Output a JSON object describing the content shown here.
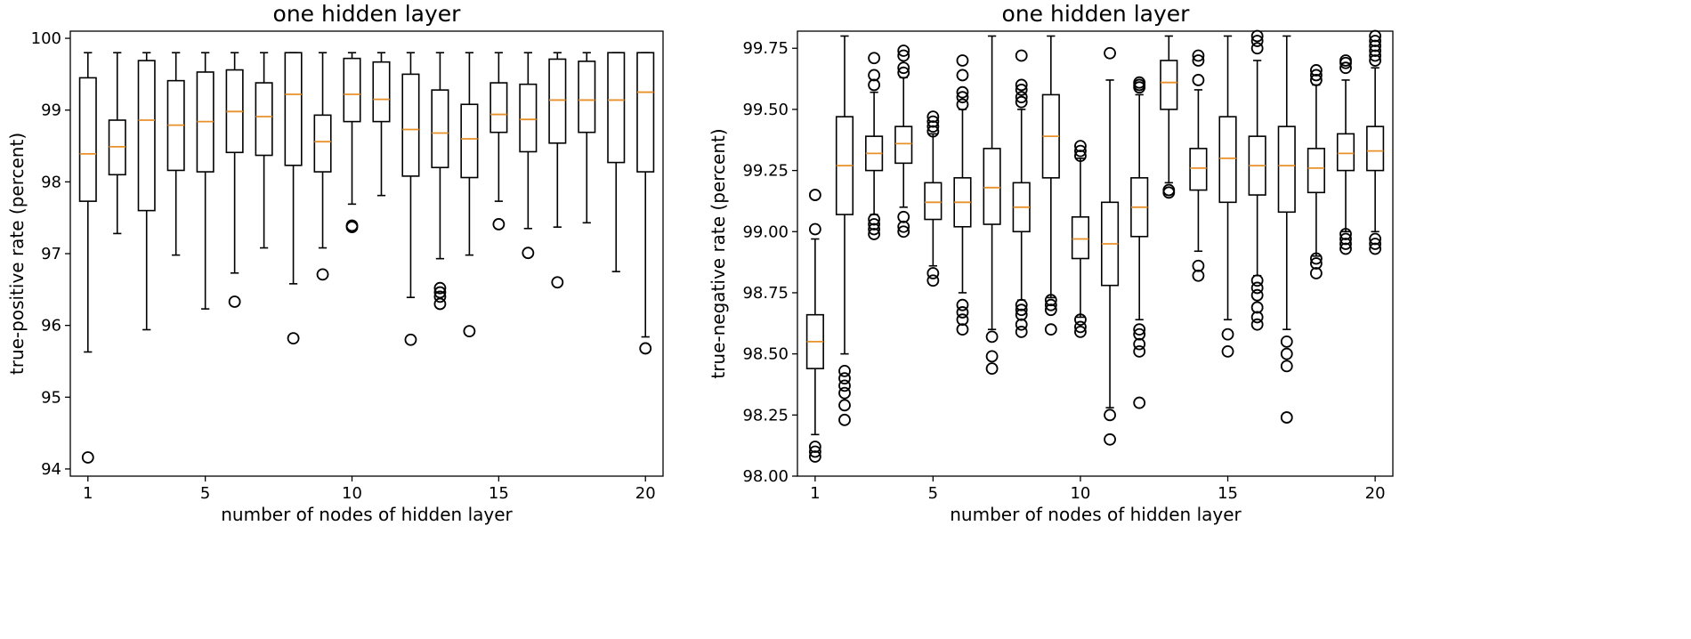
{
  "chart_data": [
    {
      "type": "boxplot",
      "title": "one hidden layer",
      "xlabel": "number of nodes of hidden layer",
      "ylabel": "true-positive rate (percent)",
      "xlim": [
        0.4,
        20.6
      ],
      "ylim": [
        93.9,
        100.1
      ],
      "xticks": [
        1,
        5,
        10,
        15,
        20
      ],
      "yticks": [
        94,
        95,
        96,
        97,
        98,
        99,
        100
      ],
      "ytick_labels": [
        "94",
        "95",
        "96",
        "97",
        "98",
        "99",
        "100"
      ],
      "boxes": [
        {
          "x": 1,
          "whislo": 95.63,
          "q1": 97.73,
          "med": 98.39,
          "q3": 99.45,
          "whishi": 99.8,
          "fliers": [
            94.16
          ]
        },
        {
          "x": 2,
          "whislo": 97.28,
          "q1": 98.1,
          "med": 98.49,
          "q3": 98.86,
          "whishi": 99.8,
          "fliers": []
        },
        {
          "x": 3,
          "whislo": 95.94,
          "q1": 97.6,
          "med": 98.86,
          "q3": 99.69,
          "whishi": 99.8,
          "fliers": []
        },
        {
          "x": 4,
          "whislo": 96.98,
          "q1": 98.16,
          "med": 98.79,
          "q3": 99.41,
          "whishi": 99.8,
          "fliers": []
        },
        {
          "x": 5,
          "whislo": 96.23,
          "q1": 98.14,
          "med": 98.84,
          "q3": 99.53,
          "whishi": 99.8,
          "fliers": []
        },
        {
          "x": 6,
          "whislo": 96.73,
          "q1": 98.41,
          "med": 98.98,
          "q3": 99.56,
          "whishi": 99.8,
          "fliers": [
            96.33
          ]
        },
        {
          "x": 7,
          "whislo": 97.08,
          "q1": 98.37,
          "med": 98.91,
          "q3": 99.38,
          "whishi": 99.8,
          "fliers": []
        },
        {
          "x": 8,
          "whislo": 96.58,
          "q1": 98.23,
          "med": 99.22,
          "q3": 99.8,
          "whishi": 99.8,
          "fliers": [
            95.82
          ]
        },
        {
          "x": 9,
          "whislo": 97.08,
          "q1": 98.14,
          "med": 98.56,
          "q3": 98.93,
          "whishi": 99.8,
          "fliers": [
            96.71
          ]
        },
        {
          "x": 10,
          "whislo": 97.69,
          "q1": 98.84,
          "med": 99.22,
          "q3": 99.72,
          "whishi": 99.8,
          "fliers": [
            97.37,
            97.39
          ]
        },
        {
          "x": 11,
          "whislo": 97.81,
          "q1": 98.84,
          "med": 99.15,
          "q3": 99.67,
          "whishi": 99.8,
          "fliers": []
        },
        {
          "x": 12,
          "whislo": 96.39,
          "q1": 98.08,
          "med": 98.73,
          "q3": 99.5,
          "whishi": 99.8,
          "fliers": [
            95.8
          ]
        },
        {
          "x": 13,
          "whislo": 96.93,
          "q1": 98.2,
          "med": 98.68,
          "q3": 99.28,
          "whishi": 99.8,
          "fliers": [
            96.52,
            96.46,
            96.4,
            96.3
          ]
        },
        {
          "x": 14,
          "whislo": 96.98,
          "q1": 98.06,
          "med": 98.6,
          "q3": 99.08,
          "whishi": 99.8,
          "fliers": [
            95.92
          ]
        },
        {
          "x": 15,
          "whislo": 97.73,
          "q1": 98.69,
          "med": 98.94,
          "q3": 99.38,
          "whishi": 99.8,
          "fliers": [
            97.41
          ]
        },
        {
          "x": 16,
          "whislo": 97.35,
          "q1": 98.42,
          "med": 98.87,
          "q3": 99.36,
          "whishi": 99.8,
          "fliers": [
            97.01
          ]
        },
        {
          "x": 17,
          "whislo": 97.37,
          "q1": 98.54,
          "med": 99.14,
          "q3": 99.71,
          "whishi": 99.8,
          "fliers": [
            96.6
          ]
        },
        {
          "x": 18,
          "whislo": 97.43,
          "q1": 98.69,
          "med": 99.14,
          "q3": 99.68,
          "whishi": 99.8,
          "fliers": []
        },
        {
          "x": 19,
          "whislo": 96.75,
          "q1": 98.27,
          "med": 99.14,
          "q3": 99.8,
          "whishi": 99.8,
          "fliers": []
        },
        {
          "x": 20,
          "whislo": 95.84,
          "q1": 98.14,
          "med": 99.25,
          "q3": 99.8,
          "whishi": 99.8,
          "fliers": [
            95.68
          ]
        }
      ]
    },
    {
      "type": "boxplot",
      "title": "one hidden layer",
      "xlabel": "number of nodes of hidden layer",
      "ylabel": "true-negative rate (percent)",
      "xlim": [
        0.4,
        20.6
      ],
      "ylim": [
        98.0,
        99.82
      ],
      "xticks": [
        1,
        5,
        10,
        15,
        20
      ],
      "yticks": [
        98.0,
        98.25,
        98.5,
        98.75,
        99.0,
        99.25,
        99.5,
        99.75
      ],
      "ytick_labels": [
        "98.00",
        "98.25",
        "98.50",
        "98.75",
        "99.00",
        "99.25",
        "99.50",
        "99.75"
      ],
      "boxes": [
        {
          "x": 1,
          "whislo": 98.17,
          "q1": 98.44,
          "med": 98.55,
          "q3": 98.66,
          "whishi": 98.97,
          "fliers": [
            99.15,
            99.01,
            98.12,
            98.1,
            98.08
          ]
        },
        {
          "x": 2,
          "whislo": 98.5,
          "q1": 99.07,
          "med": 99.27,
          "q3": 99.47,
          "whishi": 99.8,
          "fliers": [
            98.43,
            98.4,
            98.37,
            98.34,
            98.29,
            98.23
          ]
        },
        {
          "x": 3,
          "whislo": 99.07,
          "q1": 99.25,
          "med": 99.32,
          "q3": 99.39,
          "whishi": 99.57,
          "fliers": [
            99.71,
            99.64,
            99.6,
            99.05,
            99.03,
            99.01,
            98.99
          ]
        },
        {
          "x": 4,
          "whislo": 99.1,
          "q1": 99.28,
          "med": 99.36,
          "q3": 99.43,
          "whishi": 99.63,
          "fliers": [
            99.74,
            99.72,
            99.67,
            99.65,
            99.06,
            99.02,
            99.0
          ]
        },
        {
          "x": 5,
          "whislo": 98.86,
          "q1": 99.05,
          "med": 99.12,
          "q3": 99.2,
          "whishi": 99.4,
          "fliers": [
            99.47,
            99.45,
            99.43,
            99.41,
            98.83,
            98.8
          ]
        },
        {
          "x": 6,
          "whislo": 98.75,
          "q1": 99.02,
          "med": 99.12,
          "q3": 99.22,
          "whishi": 99.5,
          "fliers": [
            99.7,
            99.64,
            99.57,
            99.55,
            99.52,
            98.7,
            98.67,
            98.64,
            98.6
          ]
        },
        {
          "x": 7,
          "whislo": 98.6,
          "q1": 99.03,
          "med": 99.18,
          "q3": 99.34,
          "whishi": 99.8,
          "fliers": [
            98.57,
            98.49,
            98.44
          ]
        },
        {
          "x": 8,
          "whislo": 98.72,
          "q1": 99.0,
          "med": 99.1,
          "q3": 99.2,
          "whishi": 99.5,
          "fliers": [
            99.72,
            99.6,
            99.58,
            99.55,
            99.53,
            98.7,
            98.68,
            98.66,
            98.62,
            98.59
          ]
        },
        {
          "x": 9,
          "whislo": 98.73,
          "q1": 99.22,
          "med": 99.39,
          "q3": 99.56,
          "whishi": 99.8,
          "fliers": [
            98.72,
            98.7,
            98.68,
            98.6
          ]
        },
        {
          "x": 10,
          "whislo": 98.65,
          "q1": 98.89,
          "med": 98.97,
          "q3": 99.06,
          "whishi": 99.3,
          "fliers": [
            99.35,
            99.33,
            99.31,
            98.64,
            98.61,
            98.59
          ]
        },
        {
          "x": 11,
          "whislo": 98.28,
          "q1": 98.78,
          "med": 98.95,
          "q3": 99.12,
          "whishi": 99.62,
          "fliers": [
            99.73,
            98.25,
            98.15
          ]
        },
        {
          "x": 12,
          "whislo": 98.64,
          "q1": 98.98,
          "med": 99.1,
          "q3": 99.22,
          "whishi": 99.56,
          "fliers": [
            99.61,
            99.6,
            99.59,
            98.6,
            98.58,
            98.54,
            98.51,
            98.3
          ]
        },
        {
          "x": 13,
          "whislo": 99.2,
          "q1": 99.5,
          "med": 99.61,
          "q3": 99.7,
          "whishi": 99.8,
          "fliers": [
            99.17,
            99.16
          ]
        },
        {
          "x": 14,
          "whislo": 98.92,
          "q1": 99.17,
          "med": 99.26,
          "q3": 99.34,
          "whishi": 99.58,
          "fliers": [
            99.72,
            99.7,
            99.62,
            98.86,
            98.82
          ]
        },
        {
          "x": 15,
          "whislo": 98.64,
          "q1": 99.12,
          "med": 99.3,
          "q3": 99.47,
          "whishi": 99.8,
          "fliers": [
            98.58,
            98.51
          ]
        },
        {
          "x": 16,
          "whislo": 98.82,
          "q1": 99.15,
          "med": 99.27,
          "q3": 99.39,
          "whishi": 99.7,
          "fliers": [
            99.8,
            99.78,
            99.75,
            98.8,
            98.77,
            98.74,
            98.69,
            98.65,
            98.62
          ]
        },
        {
          "x": 17,
          "whislo": 98.6,
          "q1": 99.08,
          "med": 99.27,
          "q3": 99.43,
          "whishi": 99.8,
          "fliers": [
            98.55,
            98.5,
            98.45,
            98.24
          ]
        },
        {
          "x": 18,
          "whislo": 98.9,
          "q1": 99.16,
          "med": 99.26,
          "q3": 99.34,
          "whishi": 99.6,
          "fliers": [
            99.66,
            99.64,
            99.62,
            98.89,
            98.87,
            98.83
          ]
        },
        {
          "x": 19,
          "whislo": 99.0,
          "q1": 99.25,
          "med": 99.32,
          "q3": 99.4,
          "whishi": 99.62,
          "fliers": [
            99.7,
            99.69,
            99.67,
            98.99,
            98.97,
            98.95,
            98.93
          ]
        },
        {
          "x": 20,
          "whislo": 99.0,
          "q1": 99.25,
          "med": 99.33,
          "q3": 99.43,
          "whishi": 99.67,
          "fliers": [
            99.8,
            99.78,
            99.76,
            99.74,
            99.72,
            99.7,
            98.97,
            98.95,
            98.93
          ]
        }
      ]
    }
  ]
}
